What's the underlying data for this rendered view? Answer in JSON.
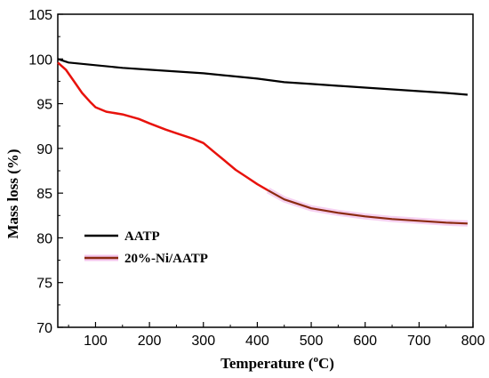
{
  "chart_data": {
    "type": "line",
    "xlabel": "Temperature (",
    "xlabel_sup": "o",
    "xlabel_unit": "C)",
    "ylabel": "Mass loss (%)",
    "xlim": [
      30,
      800
    ],
    "ylim": [
      70,
      105
    ],
    "x_ticks": [
      100,
      200,
      300,
      400,
      500,
      600,
      700,
      800
    ],
    "y_ticks": [
      70,
      75,
      80,
      85,
      90,
      95,
      100,
      105
    ],
    "grid": false,
    "legend_position": "lower-left",
    "series": [
      {
        "name": "AATP",
        "color": "#000000",
        "points": [
          [
            30,
            100.0
          ],
          [
            50,
            99.6
          ],
          [
            100,
            99.3
          ],
          [
            150,
            99.0
          ],
          [
            200,
            98.8
          ],
          [
            250,
            98.6
          ],
          [
            300,
            98.4
          ],
          [
            350,
            98.1
          ],
          [
            400,
            97.8
          ],
          [
            450,
            97.4
          ],
          [
            500,
            97.2
          ],
          [
            550,
            97.0
          ],
          [
            600,
            96.8
          ],
          [
            650,
            96.6
          ],
          [
            700,
            96.4
          ],
          [
            750,
            96.2
          ],
          [
            790,
            96.0
          ]
        ]
      },
      {
        "name": "20%-Ni/AATP",
        "color": "#e8120c",
        "color_tail": "#8b2a10",
        "points": [
          [
            30,
            99.6
          ],
          [
            45,
            98.8
          ],
          [
            60,
            97.5
          ],
          [
            75,
            96.2
          ],
          [
            90,
            95.2
          ],
          [
            100,
            94.6
          ],
          [
            120,
            94.1
          ],
          [
            150,
            93.8
          ],
          [
            180,
            93.3
          ],
          [
            200,
            92.8
          ],
          [
            230,
            92.1
          ],
          [
            250,
            91.7
          ],
          [
            280,
            91.1
          ],
          [
            300,
            90.6
          ],
          [
            320,
            89.6
          ],
          [
            340,
            88.6
          ],
          [
            360,
            87.6
          ],
          [
            380,
            86.8
          ],
          [
            400,
            86.0
          ],
          [
            420,
            85.3
          ],
          [
            450,
            84.3
          ],
          [
            480,
            83.7
          ],
          [
            500,
            83.3
          ],
          [
            550,
            82.8
          ],
          [
            600,
            82.4
          ],
          [
            650,
            82.1
          ],
          [
            700,
            81.9
          ],
          [
            750,
            81.7
          ],
          [
            790,
            81.6
          ]
        ]
      }
    ]
  }
}
